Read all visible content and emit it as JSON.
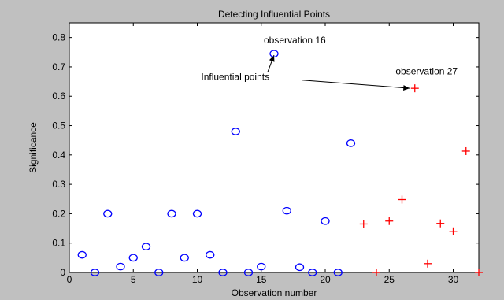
{
  "chart_data": {
    "type": "scatter",
    "title": "Detecting Influential Points",
    "xlabel": "Observation number",
    "ylabel": "Significance",
    "xlim": [
      0,
      32
    ],
    "ylim": [
      0,
      0.85
    ],
    "xticks": [
      0,
      5,
      10,
      15,
      20,
      25,
      30
    ],
    "yticks": [
      0,
      0.1,
      0.2,
      0.3,
      0.4,
      0.5,
      0.6,
      0.7,
      0.8
    ],
    "grid": false,
    "legend": "none",
    "series": [
      {
        "marker": "circle",
        "color": "#0000ff",
        "x": [
          1,
          2,
          3,
          4,
          5,
          6,
          7,
          8,
          9,
          10,
          11,
          12,
          13,
          14,
          15,
          16,
          17,
          18,
          19,
          20,
          21,
          22
        ],
        "y": [
          0.06,
          0.0,
          0.2,
          0.02,
          0.05,
          0.088,
          0.0,
          0.2,
          0.05,
          0.2,
          0.06,
          0.0,
          0.48,
          0.0,
          0.02,
          0.745,
          0.21,
          0.018,
          0.0,
          0.175,
          0.0,
          0.44
        ]
      },
      {
        "marker": "plus",
        "color": "#ff0000",
        "x": [
          23,
          24,
          25,
          26,
          27,
          28,
          29,
          30,
          31,
          32
        ],
        "y": [
          0.165,
          0.0,
          0.175,
          0.248,
          0.627,
          0.03,
          0.167,
          0.14,
          0.413,
          0.0
        ]
      }
    ],
    "annotations": [
      {
        "text": "observation 16",
        "x": 15.2,
        "y": 0.78
      },
      {
        "text": "observation 27",
        "x": 25.5,
        "y": 0.675
      },
      {
        "text": "Influential points",
        "x": 10.3,
        "y": 0.655
      }
    ],
    "arrows": [
      {
        "from": [
          15.5,
          0.682
        ],
        "to": [
          16.0,
          0.74
        ]
      },
      {
        "from": [
          18.2,
          0.655
        ],
        "to": [
          26.6,
          0.627
        ]
      }
    ]
  }
}
